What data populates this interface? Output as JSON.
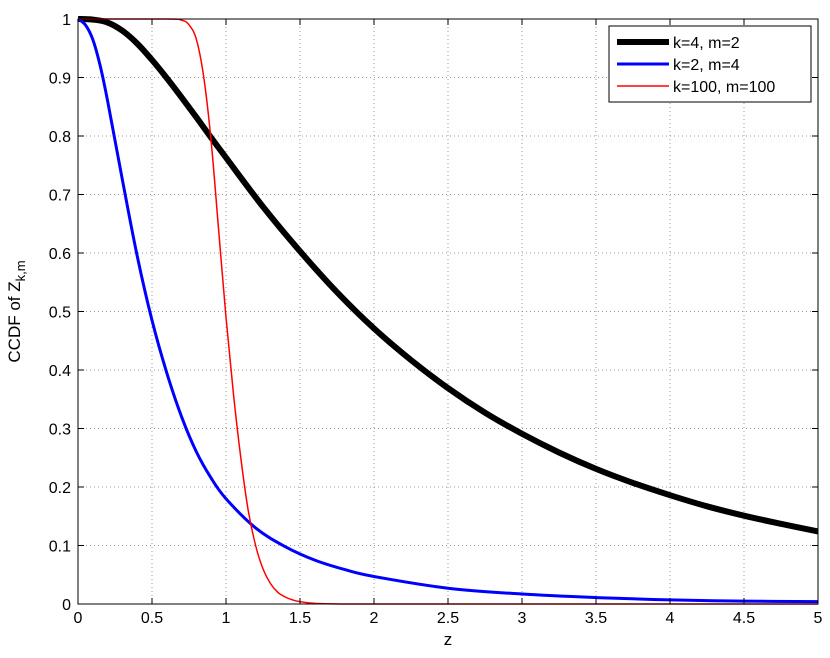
{
  "chart_data": {
    "type": "line",
    "title": "",
    "xlabel": "z",
    "ylabel": "CCDF of Z",
    "ylabel_subscript": "k,m",
    "xlim": [
      0,
      5
    ],
    "ylim": [
      0,
      1
    ],
    "x_ticks": [
      0,
      0.5,
      1,
      1.5,
      2,
      2.5,
      3,
      3.5,
      4,
      4.5,
      5
    ],
    "x_tick_labels": [
      "0",
      "0.5",
      "1",
      "1.5",
      "2",
      "2.5",
      "3",
      "3.5",
      "4",
      "4.5",
      "5"
    ],
    "y_ticks": [
      0,
      0.1,
      0.2,
      0.3,
      0.4,
      0.5,
      0.6,
      0.7,
      0.8,
      0.9,
      1
    ],
    "y_tick_labels": [
      "0",
      "0.1",
      "0.2",
      "0.3",
      "0.4",
      "0.5",
      "0.6",
      "0.7",
      "0.8",
      "0.9",
      "1"
    ],
    "grid": true,
    "legend_position": "top-right",
    "series": [
      {
        "name": "k=4, m=2",
        "color": "#000000",
        "line_weight": "thick",
        "x": [
          0,
          0.1,
          0.2,
          0.3,
          0.4,
          0.5,
          0.6,
          0.7,
          0.8,
          0.9,
          1.0,
          1.25,
          1.5,
          1.75,
          2.0,
          2.25,
          2.5,
          2.75,
          3.0,
          3.25,
          3.5,
          3.75,
          4.0,
          4.25,
          4.5,
          4.75,
          5.0
        ],
        "y": [
          1.0,
          0.999,
          0.994,
          0.98,
          0.958,
          0.93,
          0.899,
          0.866,
          0.832,
          0.797,
          0.763,
          0.679,
          0.603,
          0.533,
          0.471,
          0.417,
          0.369,
          0.327,
          0.291,
          0.259,
          0.231,
          0.207,
          0.186,
          0.167,
          0.151,
          0.137,
          0.124
        ]
      },
      {
        "name": "k=2, m=4",
        "color": "#0000ff",
        "line_weight": "medium",
        "x": [
          0,
          0.05,
          0.1,
          0.15,
          0.2,
          0.3,
          0.4,
          0.5,
          0.6,
          0.7,
          0.8,
          0.9,
          1.0,
          1.2,
          1.4,
          1.6,
          1.8,
          2.0,
          2.5,
          3.0,
          3.5,
          4.0,
          4.5,
          5.0
        ],
        "y": [
          1.0,
          0.99,
          0.965,
          0.92,
          0.86,
          0.725,
          0.595,
          0.485,
          0.395,
          0.32,
          0.26,
          0.215,
          0.18,
          0.13,
          0.098,
          0.075,
          0.059,
          0.047,
          0.027,
          0.017,
          0.011,
          0.007,
          0.005,
          0.004
        ]
      },
      {
        "name": "k=100, m=100",
        "color": "#ff0000",
        "line_weight": "thin",
        "x": [
          0,
          0.6,
          0.7,
          0.75,
          0.8,
          0.85,
          0.9,
          0.95,
          1.0,
          1.05,
          1.1,
          1.15,
          1.2,
          1.25,
          1.3,
          1.35,
          1.4,
          1.45,
          1.5,
          1.6,
          1.8,
          2.0,
          3.0,
          4.0,
          5.0
        ],
        "y": [
          1.0,
          1.0,
          0.998,
          0.99,
          0.965,
          0.9,
          0.79,
          0.64,
          0.49,
          0.36,
          0.25,
          0.16,
          0.1,
          0.06,
          0.035,
          0.02,
          0.012,
          0.007,
          0.004,
          0.001,
          0,
          0,
          0,
          0,
          0
        ]
      }
    ]
  }
}
